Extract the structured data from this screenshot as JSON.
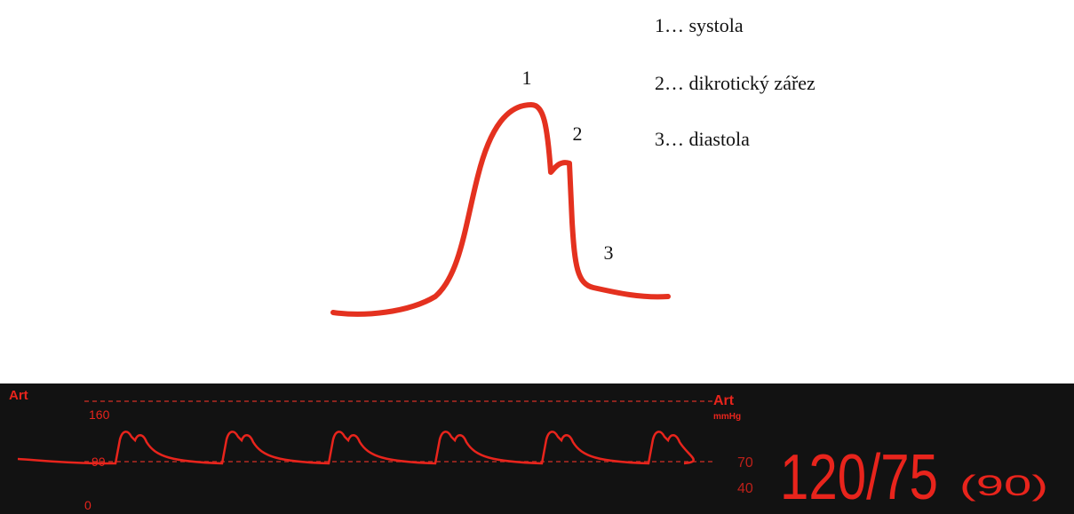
{
  "diagram": {
    "point_labels": [
      "1",
      "2",
      "3"
    ],
    "legend": [
      "1… systola",
      "2… dikrotický zářez",
      "3… diastola"
    ]
  },
  "monitor": {
    "left_label": "Art",
    "scale_labels": [
      "160",
      "90",
      "0"
    ],
    "right_label": "Art",
    "unit": "mmHg",
    "alarm_limits": [
      "70",
      "40"
    ],
    "pressure": "120/75",
    "mean": "(90)"
  }
}
